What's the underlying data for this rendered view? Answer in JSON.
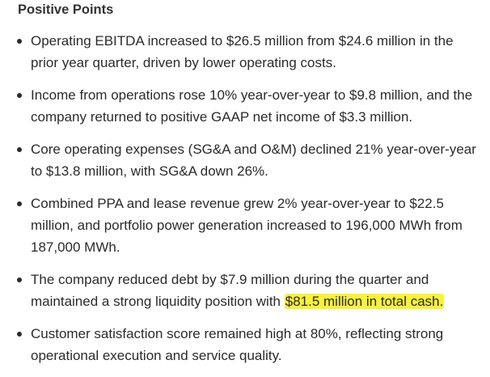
{
  "title": "Positive Points",
  "items": [
    {
      "text": "Operating EBITDA increased to $26.5 million from $24.6 million in the prior year quarter, driven by lower operating costs."
    },
    {
      "text": "Income from operations rose 10% year-over-year to $9.8 million, and the company returned to positive GAAP net income of $3.3 million."
    },
    {
      "text": "Core operating expenses (SG&A and O&M) declined 21% year-over-year to $13.8 million, with SG&A down 26%."
    },
    {
      "text": "Combined PPA and lease revenue grew 2% year-over-year to $22.5 million, and portfolio power generation increased to 196,000 MWh from 187,000 MWh."
    },
    {
      "text": "The company reduced debt by $7.9 million during the quarter and maintained a strong liquidity position with",
      "highlight": "$81.5 million in total cash."
    },
    {
      "text": "Customer satisfaction score remained high at 80%, reflecting strong operational execution and service quality."
    }
  ]
}
